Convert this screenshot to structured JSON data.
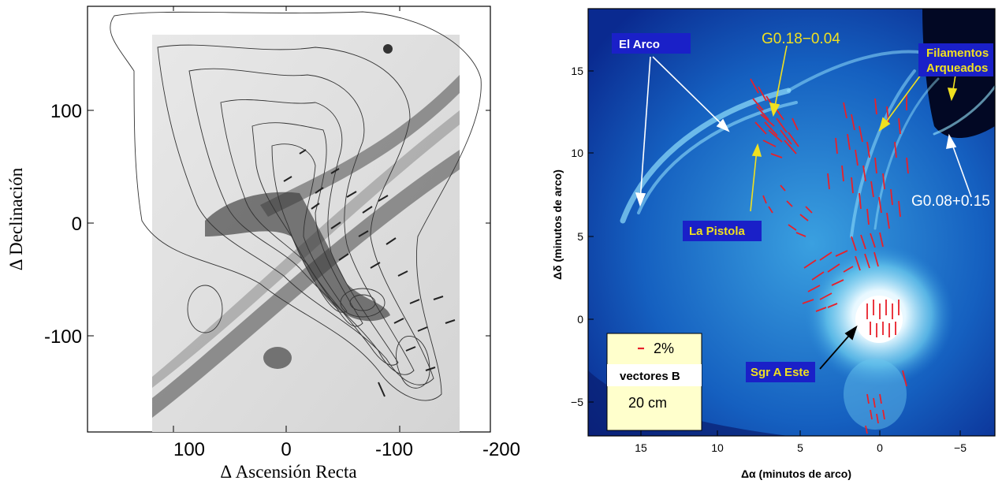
{
  "left_panel": {
    "xlabel": "Δ Ascensión Recta",
    "ylabel": "Δ Declinación",
    "x_ticks": [
      "100",
      "0",
      "-100",
      "-200"
    ],
    "y_ticks": [
      "100",
      "0",
      "-100"
    ]
  },
  "right_panel": {
    "xlabel": "Δα  (minutos de arco)",
    "ylabel": "Δδ (minutos de arco)",
    "x_ticks": [
      "15",
      "10",
      "5",
      "0",
      "−5"
    ],
    "y_ticks": [
      "15",
      "10",
      "5",
      "0",
      "−5"
    ],
    "labels": {
      "el_arco": "El Arco",
      "g018": "G0.18−0.04",
      "filamentos_1": "Filamentos",
      "filamentos_2": "Arqueados",
      "g008": "G0.08+0.15",
      "la_pistola": "La Pistola",
      "sgr_a_este": "Sgr A Este"
    },
    "legend": {
      "scale": "2%",
      "vectors": "vectores B",
      "band": "20 cm"
    }
  },
  "colors": {
    "vector_red": "#e8202a",
    "label_yellow": "#f0e020",
    "label_box_blue": "#1a20c8",
    "legend_bg": "#ffffcc"
  }
}
